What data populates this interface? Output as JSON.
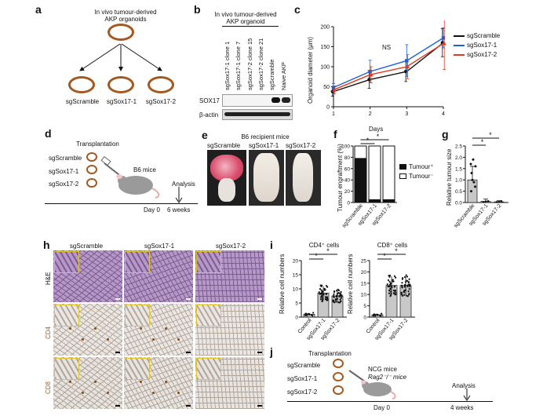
{
  "panel_labels": {
    "a": "a",
    "b": "b",
    "c": "c",
    "d": "d",
    "e": "e",
    "f": "f",
    "g": "g",
    "h": "h",
    "i": "i",
    "j": "j"
  },
  "a": {
    "title_line1": "In vivo tumour-derived",
    "title_line2": "AKP organoids",
    "children": [
      "sgScramble",
      "sgSox17-1",
      "sgSox17-2"
    ]
  },
  "b": {
    "title_line1": "In vivo tumour-derived",
    "title_line2": "AKP organoid",
    "lanes": [
      "sgSox17-1 clone 1",
      "sgSox17-1 clone 7",
      "sgSox17-2 clone 15",
      "sgSox17-2 clone 21",
      "sgScramble",
      "Naive AKP"
    ],
    "rows": [
      "SOX17",
      "β-actin"
    ]
  },
  "c": {
    "ylabel": "Organoid diameter (μm)",
    "xlabel": "Days",
    "ns_label": "NS",
    "legend": [
      {
        "label": "sgScramble",
        "color": "#111111"
      },
      {
        "label": "sgSox17-1",
        "color": "#1f5fd6"
      },
      {
        "label": "sgSox17-2",
        "color": "#e03a1e"
      }
    ]
  },
  "d": {
    "transplantation": "Transplantation",
    "groups": [
      "sgScramble",
      "sgSox17-1",
      "sgSox17-2"
    ],
    "mouse_label": "B6 mice",
    "analysis": "Analysis",
    "day0": "Day 0",
    "end": "6 weeks"
  },
  "e": {
    "title": "B6 recipient mice",
    "columns": [
      "sgScramble",
      "sgSox17-1",
      "sgSox17-2"
    ]
  },
  "f": {
    "ylabel": "Tumour engraftment (%)",
    "legend": [
      "Tumour⁺",
      "Tumour⁻"
    ],
    "star": "*"
  },
  "g": {
    "ylabel": "Relative tumour size",
    "star": "*"
  },
  "h": {
    "columns": [
      "sgScramble",
      "sgSox17-1",
      "sgSox17-2"
    ],
    "rows": [
      "H&E",
      "CD4",
      "CD8"
    ]
  },
  "i": {
    "ylabel": "Relative cell numbers",
    "titles": [
      "CD4⁺ cells",
      "CD8⁺ cells"
    ],
    "star": "*"
  },
  "j": {
    "transplantation": "Transplantation",
    "groups": [
      "sgScramble",
      "sgSox17-1",
      "sgSox17-2"
    ],
    "mouse_line1": "NCG mice",
    "mouse_line2": "Rag2⁻/⁻ mice",
    "analysis": "Analysis",
    "day0": "Day 0",
    "end": "4 weeks"
  },
  "chart_data": [
    {
      "panel": "c",
      "type": "line",
      "x": [
        1,
        2,
        3,
        4
      ],
      "xlabel": "Days",
      "ylabel": "Organoid diameter (μm)",
      "xlim": [
        1,
        4
      ],
      "ylim": [
        0,
        200
      ],
      "yticks": [
        0,
        50,
        100,
        150,
        200
      ],
      "series": [
        {
          "name": "sgScramble",
          "values": [
            38,
            68,
            88,
            160
          ],
          "err": [
            12,
            22,
            25,
            35
          ]
        },
        {
          "name": "sgSox17-1",
          "values": [
            48,
            88,
            115,
            172
          ],
          "err": [
            10,
            28,
            40,
            25
          ]
        },
        {
          "name": "sgSox17-2",
          "values": [
            42,
            80,
            100,
            158
          ],
          "err": [
            10,
            20,
            30,
            65
          ]
        }
      ]
    },
    {
      "panel": "f",
      "type": "bar",
      "categories": [
        "sgScramble",
        "sgSox17-1",
        "sgSox17-2"
      ],
      "ylabel": "Tumour engraftment (%)",
      "ylim": [
        0,
        100
      ],
      "yticks": [
        0,
        20,
        40,
        60,
        80,
        100
      ],
      "series": [
        {
          "name": "Tumour⁺",
          "values": [
            78,
            5,
            5
          ]
        },
        {
          "name": "Tumour⁻",
          "values": [
            22,
            95,
            95
          ]
        }
      ]
    },
    {
      "panel": "g",
      "type": "bar",
      "categories": [
        "sgScramble",
        "sgSox17-1",
        "sgSox17-2"
      ],
      "ylabel": "Relative tumour size",
      "ylim": [
        0,
        2.5
      ],
      "yticks": [
        0,
        0.5,
        1.0,
        1.5,
        2.0,
        2.5
      ],
      "values": [
        1.0,
        0.05,
        0.03
      ],
      "err": [
        0.6,
        0.1,
        0.05
      ]
    },
    {
      "panel": "i-CD4",
      "type": "bar",
      "categories": [
        "Control",
        "sgSox17-1",
        "sgSox17-2"
      ],
      "ylabel": "Relative cell numbers",
      "ylim": [
        0,
        20
      ],
      "yticks": [
        0,
        5,
        10,
        15,
        20
      ],
      "values": [
        1.0,
        8.5,
        7.5
      ],
      "err": [
        0.5,
        2.5,
        2.0
      ]
    },
    {
      "panel": "i-CD8",
      "type": "bar",
      "categories": [
        "Control",
        "sgSox17-1",
        "sgSox17-2"
      ],
      "ylabel": "Relative cell numbers",
      "ylim": [
        0,
        25
      ],
      "yticks": [
        0,
        5,
        10,
        15,
        20,
        25
      ],
      "values": [
        1.0,
        14,
        14
      ],
      "err": [
        0.5,
        4,
        4
      ]
    }
  ]
}
